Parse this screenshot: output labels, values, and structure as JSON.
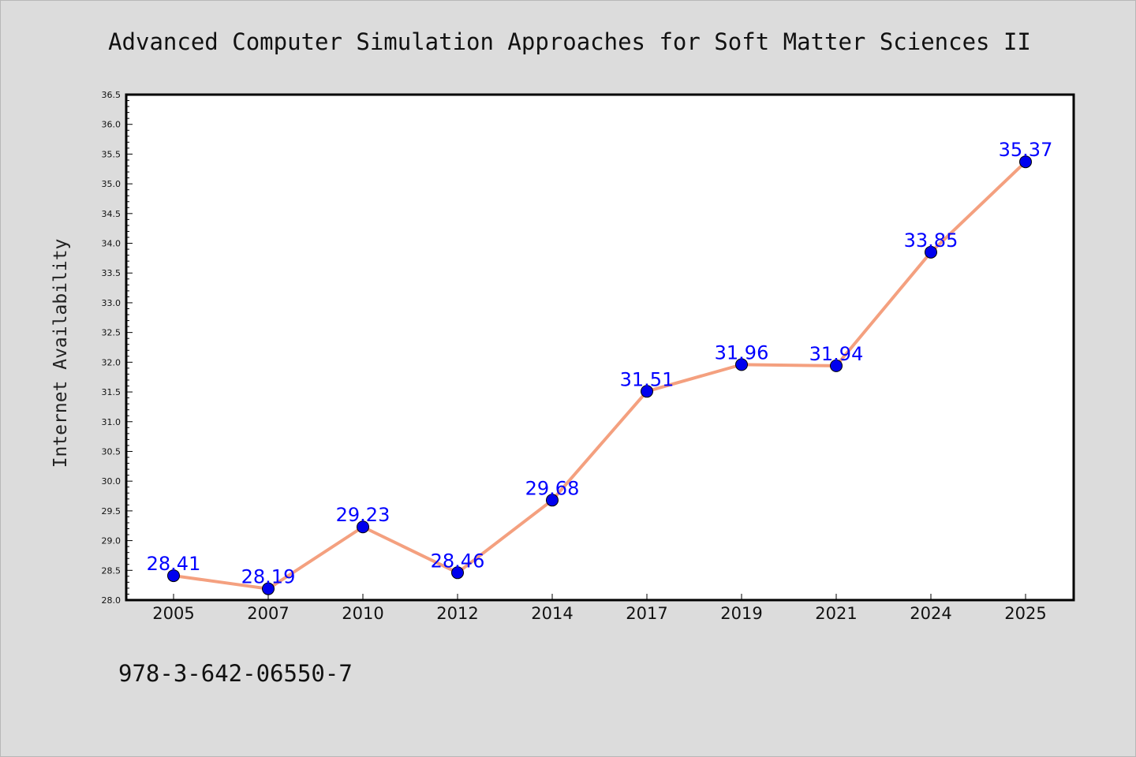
{
  "chart_data": {
    "type": "line",
    "title": "Advanced Computer Simulation Approaches for Soft Matter Sciences II",
    "xlabel": "",
    "ylabel": "Internet Availability",
    "categories": [
      "2005",
      "2007",
      "2010",
      "2012",
      "2014",
      "2017",
      "2019",
      "2021",
      "2024",
      "2025"
    ],
    "series": [
      {
        "values": [
          28.41,
          28.19,
          29.23,
          28.46,
          29.68,
          31.51,
          31.96,
          31.94,
          33.85,
          35.37
        ],
        "labels": [
          "28.41",
          "28.19",
          "29.23",
          "28.46",
          "29.68",
          "31.51",
          "31.96",
          "31.94",
          "33.85",
          "35.37"
        ]
      }
    ],
    "ylim": [
      28.0,
      36.5
    ],
    "yticks": [
      "28.0",
      "28.5",
      "29.0",
      "29.5",
      "30.0",
      "30.5",
      "31.0",
      "31.5",
      "32.0",
      "32.5",
      "33.0",
      "33.5",
      "34.0",
      "34.5",
      "35.0",
      "35.5",
      "36.0",
      "36.5"
    ],
    "grid": false,
    "legend": "none",
    "line_color": "#f4a07f",
    "marker_color": "#0000ee",
    "label_color": "#0000ff",
    "plot_background": "#ffffff",
    "figure_background": "#dcdcdc"
  },
  "footer": {
    "isbn": "978-3-642-06550-7"
  }
}
